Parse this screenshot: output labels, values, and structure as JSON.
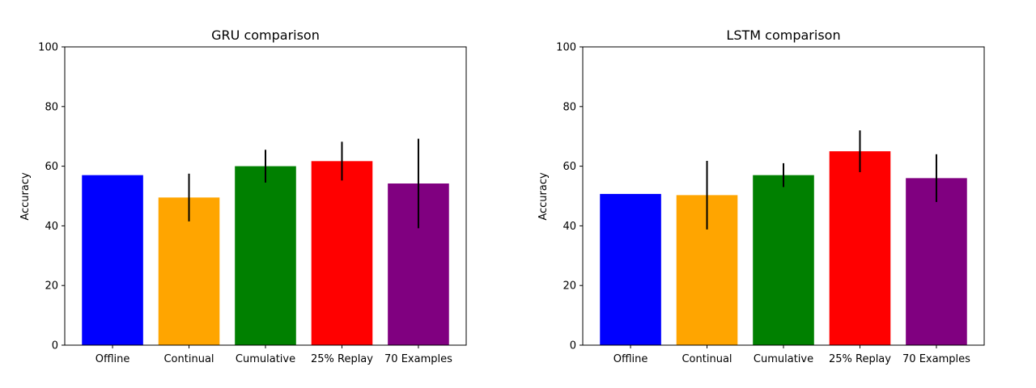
{
  "chart_data": [
    {
      "type": "bar",
      "title": "GRU comparison",
      "xlabel": "",
      "ylabel": "Accuracy",
      "ylim": [
        0,
        100
      ],
      "yticks": [
        0,
        20,
        40,
        60,
        80,
        100
      ],
      "categories": [
        "Offline",
        "Continual",
        "Cumulative",
        "25% Replay",
        "70 Examples"
      ],
      "values": [
        57.0,
        49.5,
        60.0,
        61.7,
        54.2
      ],
      "errors": [
        0,
        8.0,
        5.5,
        6.5,
        15.0
      ],
      "colors": [
        "#0000ff",
        "#ffa500",
        "#008000",
        "#ff0000",
        "#800080"
      ],
      "grid": false,
      "legend": "none"
    },
    {
      "type": "bar",
      "title": "LSTM comparison",
      "xlabel": "",
      "ylabel": "Accuracy",
      "ylim": [
        0,
        100
      ],
      "yticks": [
        0,
        20,
        40,
        60,
        80,
        100
      ],
      "categories": [
        "Offline",
        "Continual",
        "Cumulative",
        "25% Replay",
        "70 Examples"
      ],
      "values": [
        50.7,
        50.3,
        57.0,
        65.0,
        56.0
      ],
      "errors": [
        0,
        11.5,
        4.0,
        7.0,
        8.0
      ],
      "colors": [
        "#0000ff",
        "#ffa500",
        "#008000",
        "#ff0000",
        "#800080"
      ],
      "grid": false,
      "legend": "none"
    }
  ]
}
